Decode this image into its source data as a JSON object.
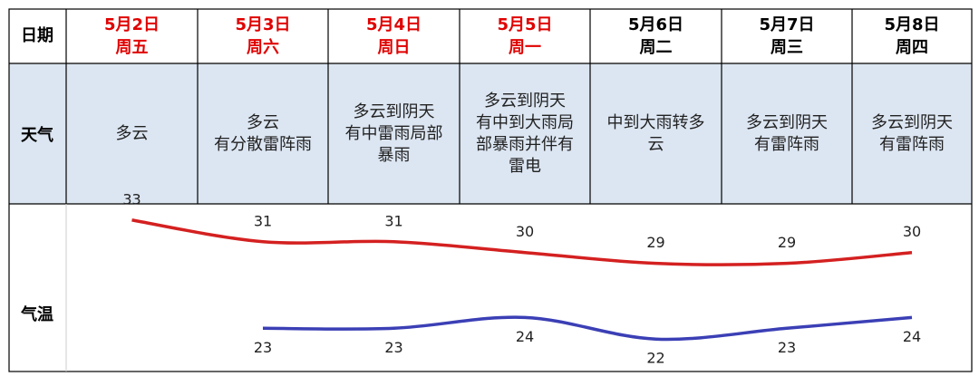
{
  "table": {
    "row_labels": [
      "日期",
      "天气",
      "气温"
    ],
    "dates": [
      "5月2日",
      "5月3日",
      "5月4日",
      "5月5日",
      "5月6日",
      "5月7日",
      "5月8日"
    ],
    "weekdays": [
      "周五",
      "周六",
      "周日",
      "周一",
      "周二",
      "周三",
      "周四"
    ],
    "header_colors": [
      "#e00000",
      "#e00000",
      "#e00000",
      "#e00000",
      "#000000",
      "#000000",
      "#000000"
    ],
    "weather": [
      [
        "多云"
      ],
      [
        "多云",
        "有分散雷阵雨"
      ],
      [
        "多云到阴天",
        "有中雷雨局部",
        "暴雨"
      ],
      [
        "多云到阴天",
        "有中到大雨局",
        "部暴雨并伴有",
        "雷电"
      ],
      [
        "中到大雨转多",
        "云"
      ],
      [
        "多云到阴天",
        "有雷阵雨"
      ],
      [
        "多云到阴天",
        "有雷阵雨"
      ]
    ]
  },
  "chart_data": {
    "type": "line",
    "ylim": [
      19,
      34.5
    ],
    "series": [
      {
        "color": "#d42020",
        "values": [
          33,
          31,
          31,
          30,
          29,
          29,
          30
        ]
      },
      {
        "color": "#3b3fb5",
        "values": [
          null,
          23,
          23,
          24,
          22,
          23,
          24
        ]
      }
    ]
  }
}
